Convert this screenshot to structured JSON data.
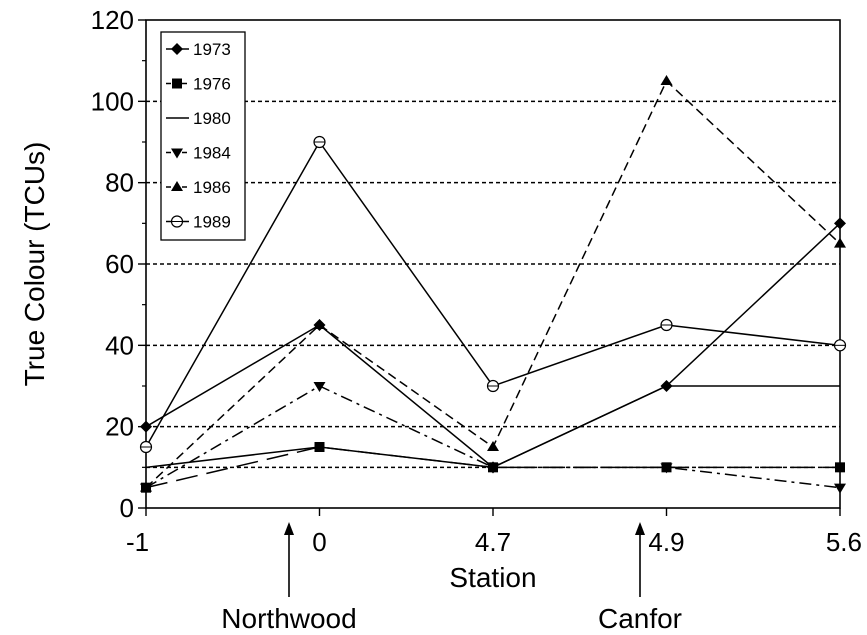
{
  "chart_data": {
    "type": "line",
    "title": "",
    "xlabel": "Station",
    "ylabel": "True Colour (TCUs)",
    "categories": [
      "-1",
      "0",
      "4.7",
      "4.9",
      "5.6"
    ],
    "ylim": [
      0,
      120
    ],
    "yticks": [
      0,
      20,
      40,
      60,
      80,
      100,
      120
    ],
    "grid": "horizontal dotted at 10, 20, 40, 60, 80, 100",
    "legend_placement": "top-left",
    "series": [
      {
        "name": "1973",
        "marker": "diamond",
        "dash": "solid",
        "values": [
          20,
          45,
          10,
          30,
          70
        ]
      },
      {
        "name": "1976",
        "marker": "square",
        "dash": "longdash",
        "values": [
          5,
          15,
          10,
          10,
          10
        ]
      },
      {
        "name": "1980",
        "marker": "none",
        "dash": "solid",
        "values": [
          10,
          15,
          10,
          30,
          30
        ]
      },
      {
        "name": "1984",
        "marker": "triangle-down",
        "dash": "dashdot",
        "values": [
          5,
          30,
          10,
          10,
          5
        ]
      },
      {
        "name": "1986",
        "marker": "triangle-up",
        "dash": "dashed",
        "values": [
          5,
          45,
          15,
          105,
          65
        ]
      },
      {
        "name": "1989",
        "marker": "open-circle",
        "dash": "solid",
        "values": [
          15,
          90,
          30,
          45,
          40
        ]
      }
    ],
    "annotations": [
      {
        "text": "Northwood",
        "at_category": "0"
      },
      {
        "text": "Canfor",
        "at_category": "4.9"
      }
    ]
  }
}
